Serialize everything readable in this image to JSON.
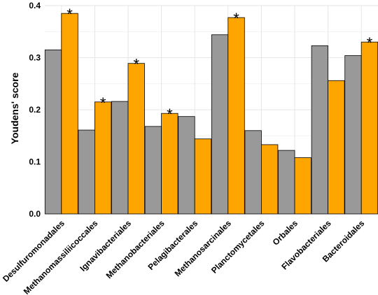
{
  "chart_data": {
    "type": "bar",
    "title": "",
    "xlabel": "",
    "ylabel": "Youdens' score",
    "ylim": [
      0,
      0.4
    ],
    "yticks": [
      0.0,
      0.1,
      0.2,
      0.3,
      0.4
    ],
    "ytick_labels": [
      "0.0",
      "0.1",
      "0.2",
      "0.3",
      "0.4"
    ],
    "grid": true,
    "legend": "none",
    "categories": [
      "Desulfuromonadales",
      "Methanomassiliicoccales",
      "Ignavibacteriales",
      "Methanobacteriales",
      "Pelagibacterales",
      "Methanosarcinales",
      "Planctomycetales",
      "Orbales",
      "Flavobacteriales",
      "Bacteroidales"
    ],
    "series": [
      {
        "color": "#999999",
        "values": [
          0.315,
          0.161,
          0.216,
          0.168,
          0.187,
          0.344,
          0.16,
          0.122,
          0.323,
          0.304
        ]
      },
      {
        "color": "#ffa500",
        "values": [
          0.385,
          0.215,
          0.289,
          0.193,
          0.144,
          0.377,
          0.133,
          0.108,
          0.256,
          0.33
        ]
      }
    ],
    "significance_marker": "*",
    "significant": [
      true,
      true,
      true,
      true,
      false,
      true,
      false,
      false,
      false,
      true
    ]
  }
}
